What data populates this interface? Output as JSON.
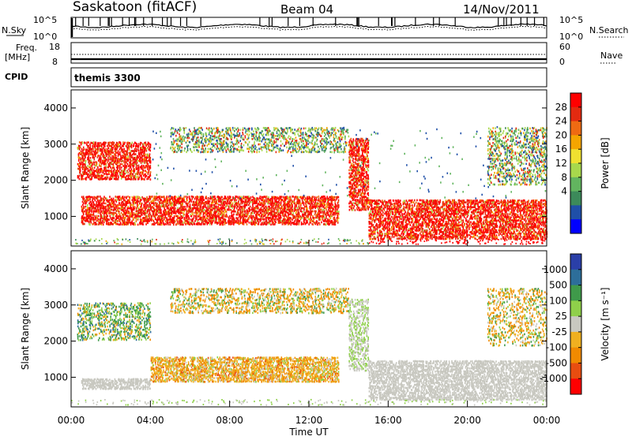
{
  "header": {
    "site": "Saskatoon (fitACF)",
    "beam": "Beam 04",
    "date": "14/Nov/2011"
  },
  "strips": {
    "nsky": {
      "label": "N.Sky",
      "tick_top": "10^5",
      "tick_bottom": "10^0",
      "right_label": "N.Search",
      "right_tick_top": "10^5",
      "right_tick_bottom": "10^0"
    },
    "freq": {
      "label_line1": "Freq.",
      "label_line2": "[MHz]",
      "tick_top": "18",
      "tick_bottom": "8",
      "right_label": "Nave",
      "right_tick_top": "60",
      "right_tick_bottom": "0"
    },
    "cpid": {
      "label": "CPID",
      "value": "themis 3300"
    }
  },
  "chart_data": [
    {
      "type": "heatmap",
      "quantity": "Power",
      "ylabel": "Slant Range [km]",
      "ylim": [
        180,
        4500
      ],
      "yticks": [
        1000,
        2000,
        3000,
        4000
      ],
      "xlabel": "Time UT",
      "xlim": [
        0,
        24
      ],
      "colorbar": {
        "label": "Power [dB]",
        "ticks": [
          "4",
          "8",
          "12",
          "16",
          "20",
          "24",
          "28"
        ],
        "colors": [
          "#0000ff",
          "#1f4fa8",
          "#3c8a5a",
          "#62b55f",
          "#a8d84c",
          "#f0e030",
          "#f5a500",
          "#ef6a12",
          "#e32a10",
          "#ff0000"
        ]
      },
      "echo_regions": [
        {
          "t": [
            0.3,
            4.0
          ],
          "r": [
            2050,
            3100
          ],
          "value": "high",
          "note": "early far-range band"
        },
        {
          "t": [
            0.5,
            4.0
          ],
          "r": [
            800,
            1600
          ],
          "value": "high"
        },
        {
          "t": [
            4.0,
            13.5
          ],
          "r": [
            800,
            1600
          ],
          "value": "high"
        },
        {
          "t": [
            5.0,
            14.0
          ],
          "r": [
            2800,
            3500
          ],
          "value": "mixed"
        },
        {
          "t": [
            14.0,
            15.0
          ],
          "r": [
            1200,
            3200
          ],
          "value": "high"
        },
        {
          "t": [
            15.0,
            24.0
          ],
          "r": [
            400,
            1500
          ],
          "value": "high"
        },
        {
          "t": [
            21.0,
            24.0
          ],
          "r": [
            1900,
            3500
          ],
          "value": "mixed"
        }
      ]
    },
    {
      "type": "heatmap",
      "quantity": "Velocity",
      "ylabel": "Slant Range [km]",
      "ylim": [
        180,
        4500
      ],
      "yticks": [
        1000,
        2000,
        3000,
        4000
      ],
      "xlabel": "Time UT",
      "xlim": [
        0,
        24
      ],
      "xticks": [
        "00:00",
        "04:00",
        "08:00",
        "12:00",
        "16:00",
        "20:00",
        "00:00"
      ],
      "colorbar": {
        "label": "Velocity [m s⁻¹]",
        "ticks": [
          "1000",
          "500",
          "100",
          "25",
          "-25",
          "-100",
          "-500",
          "-1000"
        ],
        "colors": [
          "#2a3fa8",
          "#2d6e9a",
          "#3f9a4a",
          "#8fd04a",
          "#c8c8c0",
          "#f0b020",
          "#f08a00",
          "#e84d10",
          "#ff0000"
        ]
      },
      "ground_scatter": [
        {
          "t": [
            0.5,
            4.0
          ],
          "r": [
            700,
            1000
          ]
        },
        {
          "t": [
            15.0,
            24.0
          ],
          "r": [
            400,
            1500
          ]
        }
      ],
      "echo_regions": [
        {
          "t": [
            0.3,
            4.0
          ],
          "r": [
            2050,
            3100
          ],
          "value": "positive"
        },
        {
          "t": [
            4.0,
            13.5
          ],
          "r": [
            900,
            1600
          ],
          "value": "negative"
        },
        {
          "t": [
            5.0,
            14.0
          ],
          "r": [
            2800,
            3500
          ],
          "value": "mixed"
        }
      ]
    }
  ]
}
